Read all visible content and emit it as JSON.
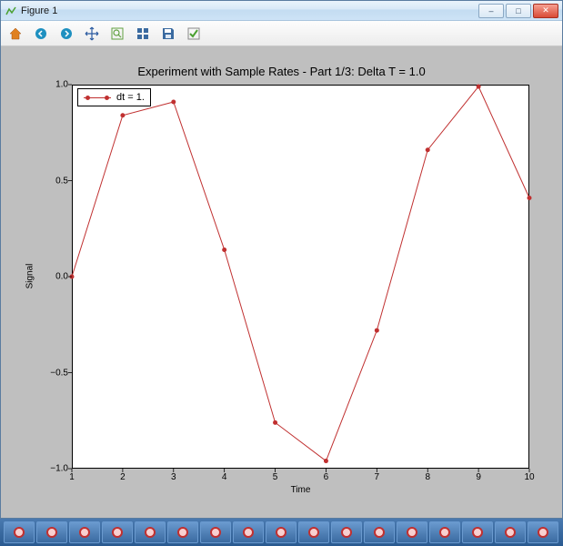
{
  "window": {
    "title": "Figure 1",
    "controls": {
      "minimize": "–",
      "maximize": "□",
      "close": "✕"
    }
  },
  "toolbar": {
    "icons": [
      {
        "name": "home-icon",
        "color": "#e08020"
      },
      {
        "name": "back-icon",
        "color": "#1e90c0"
      },
      {
        "name": "forward-icon",
        "color": "#1e90c0"
      },
      {
        "name": "pan-icon",
        "color": "#2a5aa0"
      },
      {
        "name": "zoom-icon",
        "color": "#60a040"
      },
      {
        "name": "subplots-icon",
        "color": "#3a6aa0"
      },
      {
        "name": "save-icon",
        "color": "#3a6aa0"
      },
      {
        "name": "check-icon",
        "color": "#4aa030"
      }
    ]
  },
  "chart": {
    "type": "line",
    "title": "Experiment with Sample Rates - Part 1/3: Delta T = 1.0",
    "title_fontsize": 13,
    "xlabel": "Time",
    "ylabel": "Signal",
    "label_fontsize": 10,
    "xlim": [
      1,
      10
    ],
    "ylim": [
      -1.0,
      1.0
    ],
    "xticks": [
      1,
      2,
      3,
      4,
      5,
      6,
      7,
      8,
      9,
      10
    ],
    "yticks": [
      -1.0,
      -0.5,
      0.0,
      0.5,
      1.0
    ],
    "ytick_labels": [
      "−1.0",
      "−0.5",
      "0.0",
      "0.5",
      "1.0"
    ],
    "background_color": "#bfbfbf",
    "axes_facecolor": "#ffffff",
    "axes_edgecolor": "#000000",
    "tick_fontsize": 10,
    "legend": {
      "label": "dt = 1.",
      "loc": "upper-left",
      "facecolor": "#ffffff",
      "edgecolor": "#000000"
    },
    "series": {
      "x": [
        1,
        2,
        3,
        4,
        5,
        6,
        7,
        8,
        9,
        10
      ],
      "y": [
        0.0,
        0.84,
        0.91,
        0.14,
        -0.76,
        -0.96,
        -0.28,
        0.66,
        0.99,
        0.41
      ],
      "line_color": "#c03030",
      "line_width": 1,
      "marker": "circle",
      "marker_size": 5,
      "marker_color": "#c03030"
    }
  },
  "taskbar": {
    "item_count": 17,
    "accent_color": "#c03030"
  }
}
